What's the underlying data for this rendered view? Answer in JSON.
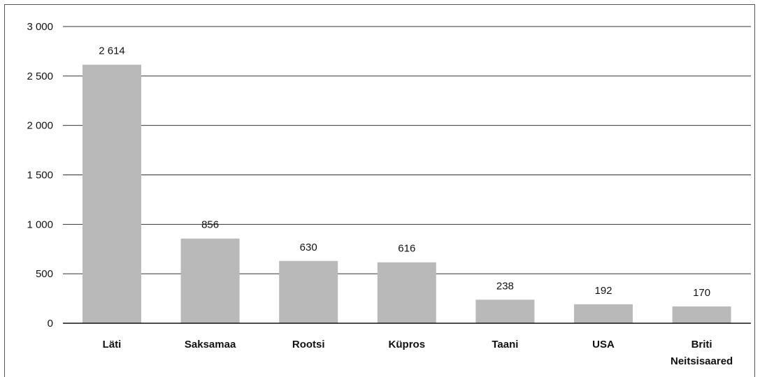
{
  "chart_data": {
    "type": "bar",
    "categories": [
      "Läti",
      "Saksamaa",
      "Rootsi",
      "Küpros",
      "Taani",
      "USA",
      [
        "Briti",
        "Neitsisaared"
      ]
    ],
    "values": [
      2614,
      856,
      630,
      616,
      238,
      192,
      170
    ],
    "value_labels": [
      "2 614",
      "856",
      "630",
      "616",
      "238",
      "192",
      "170"
    ],
    "yticks": [
      0,
      500,
      1000,
      1500,
      2000,
      2500,
      3000
    ],
    "ytick_labels": [
      "0",
      "500",
      "1 000",
      "1 500",
      "2 000",
      "2 500",
      "3 000"
    ],
    "ylim": [
      0,
      3000
    ],
    "grid": true,
    "bar_color": "#b9b9b9",
    "grid_color": "#333333"
  }
}
